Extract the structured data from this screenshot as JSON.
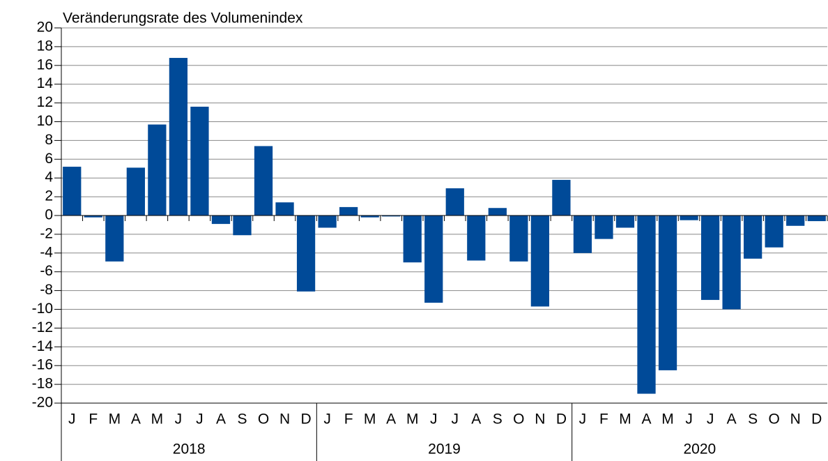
{
  "chart_data": {
    "type": "bar",
    "title": "Veränderungsrate des Volumenindex",
    "categories": [
      "J",
      "F",
      "M",
      "A",
      "M",
      "J",
      "J",
      "A",
      "S",
      "O",
      "N",
      "D",
      "J",
      "F",
      "M",
      "A",
      "M",
      "J",
      "J",
      "A",
      "S",
      "O",
      "N",
      "D",
      "J",
      "F",
      "M",
      "A",
      "M",
      "J",
      "J",
      "A",
      "S",
      "O",
      "N",
      "D"
    ],
    "groups": [
      "2018",
      "2019",
      "2020"
    ],
    "values": [
      5.2,
      -0.2,
      -4.9,
      5.1,
      9.7,
      16.8,
      11.6,
      -0.9,
      -2.1,
      7.4,
      1.4,
      -8.1,
      -1.3,
      0.9,
      -0.2,
      -0.1,
      -5.0,
      -9.3,
      2.9,
      -4.8,
      0.8,
      -4.9,
      -9.7,
      3.8,
      -4.0,
      -2.5,
      -1.3,
      -19.0,
      -16.5,
      -0.5,
      -9.0,
      -10.0,
      -4.6,
      -3.4,
      -1.1,
      -0.6
    ],
    "color": "#004a98",
    "ylim": [
      -20,
      20
    ],
    "yticks": [
      -20,
      -18,
      -16,
      -14,
      -12,
      -10,
      -8,
      -6,
      -4,
      -2,
      0,
      2,
      4,
      6,
      8,
      10,
      12,
      14,
      16,
      18,
      20
    ],
    "grid": true
  }
}
